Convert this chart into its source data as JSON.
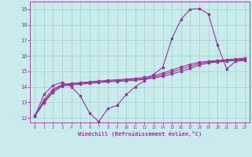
{
  "xlabel": "Windchill (Refroidissement éolien,°C)",
  "ylabel": "",
  "bg_color": "#c8ecec",
  "grid_color": "#aad4d4",
  "line_color": "#993399",
  "xlim": [
    -0.5,
    23.5
  ],
  "ylim": [
    11.7,
    19.5
  ],
  "xticks": [
    0,
    1,
    2,
    3,
    4,
    5,
    6,
    7,
    8,
    9,
    10,
    11,
    12,
    13,
    14,
    15,
    16,
    17,
    18,
    19,
    20,
    21,
    22,
    23
  ],
  "yticks": [
    12,
    13,
    14,
    15,
    16,
    17,
    18,
    19
  ],
  "curve1_x": [
    0,
    1,
    2,
    3,
    4,
    5,
    6,
    7,
    8,
    9,
    10,
    11,
    12,
    13,
    14,
    15,
    16,
    17,
    18,
    19,
    20,
    21,
    22,
    23
  ],
  "curve1_y": [
    12.1,
    13.5,
    14.1,
    14.3,
    14.0,
    13.4,
    12.3,
    11.75,
    12.6,
    12.8,
    13.5,
    14.0,
    14.4,
    14.8,
    15.25,
    17.1,
    18.35,
    19.0,
    19.05,
    18.7,
    16.7,
    15.15,
    15.65,
    15.7
  ],
  "curve2_x": [
    0,
    1,
    2,
    3,
    4,
    5,
    6,
    7,
    8,
    9,
    10,
    11,
    12,
    13,
    14,
    15,
    16,
    17,
    18,
    19,
    20,
    21,
    22,
    23
  ],
  "curve2_y": [
    12.15,
    13.05,
    13.75,
    14.1,
    14.18,
    14.23,
    14.28,
    14.33,
    14.37,
    14.4,
    14.44,
    14.48,
    14.53,
    14.62,
    14.78,
    14.95,
    15.15,
    15.32,
    15.5,
    15.6,
    15.65,
    15.7,
    15.75,
    15.8
  ],
  "curve3_x": [
    0,
    1,
    2,
    3,
    4,
    5,
    6,
    7,
    8,
    9,
    10,
    11,
    12,
    13,
    14,
    15,
    16,
    17,
    18,
    19,
    20,
    21,
    22,
    23
  ],
  "curve3_y": [
    12.1,
    13.15,
    13.85,
    14.15,
    14.22,
    14.27,
    14.32,
    14.37,
    14.42,
    14.45,
    14.5,
    14.55,
    14.62,
    14.72,
    14.88,
    15.08,
    15.28,
    15.45,
    15.58,
    15.65,
    15.7,
    15.75,
    15.8,
    15.85
  ],
  "curve4_x": [
    0,
    1,
    2,
    3,
    4,
    5,
    6,
    7,
    8,
    9,
    10,
    11,
    12,
    13,
    14,
    15,
    16,
    17,
    18,
    19,
    20,
    21,
    22,
    23
  ],
  "curve4_y": [
    12.1,
    12.95,
    13.65,
    14.05,
    14.12,
    14.17,
    14.22,
    14.27,
    14.32,
    14.35,
    14.38,
    14.42,
    14.48,
    14.57,
    14.68,
    14.82,
    15.0,
    15.18,
    15.4,
    15.54,
    15.6,
    15.65,
    15.7,
    15.75
  ]
}
